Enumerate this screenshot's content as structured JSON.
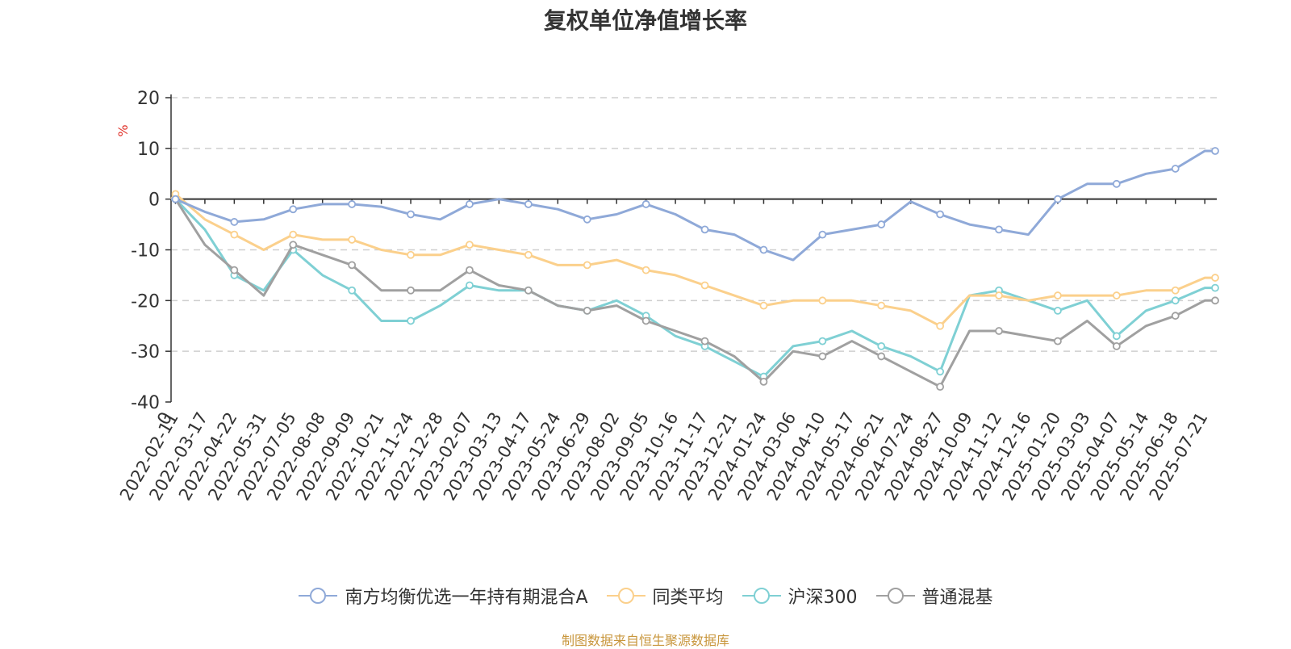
{
  "source_note": "制图数据来自恒生聚源数据库",
  "chart_data": {
    "type": "line",
    "title": "复权单位净值增长率",
    "ylabel": "%",
    "xlabel": "",
    "ylim": [
      -40,
      20
    ],
    "yticks": [
      20,
      10,
      0,
      -10,
      -20,
      -30,
      -40
    ],
    "grid": true,
    "legend_position": "bottom",
    "x": [
      "2022-02-11",
      "2022-03-17",
      "2022-04-22",
      "2022-05-31",
      "2022-07-05",
      "2022-08-08",
      "2022-09-09",
      "2022-10-21",
      "2022-11-24",
      "2022-12-28",
      "2023-02-07",
      "2023-03-13",
      "2023-04-17",
      "2023-05-24",
      "2023-06-29",
      "2023-08-02",
      "2023-09-05",
      "2023-10-16",
      "2023-11-17",
      "2023-12-21",
      "2024-01-24",
      "2024-03-06",
      "2024-04-10",
      "2024-05-17",
      "2024-06-21",
      "2024-07-24",
      "2024-08-27",
      "2024-10-09",
      "2024-11-12",
      "2024-12-16",
      "2025-01-20",
      "2025-03-03",
      "2025-04-07",
      "2025-05-14",
      "2025-06-18",
      "2025-07-21"
    ],
    "x_first_tick_label": "0",
    "series": [
      {
        "name": "南方均衡优选一年持有期混合A",
        "color": "#8fa9d8",
        "values": [
          0,
          -2.5,
          -4.5,
          -4,
          -2,
          -1,
          -1,
          -1.5,
          -3,
          -4,
          -1,
          0,
          -1,
          -2,
          -4,
          -3,
          -1,
          -3,
          -6,
          -7,
          -10,
          -12,
          -7,
          -6,
          -5,
          -0.5,
          -3,
          -5,
          -6,
          -7,
          0,
          3,
          3,
          5,
          6,
          9.5
        ]
      },
      {
        "name": "同类平均",
        "color": "#fbd08c",
        "values": [
          1,
          -4,
          -7,
          -10,
          -7,
          -8,
          -8,
          -10,
          -11,
          -11,
          -9,
          -10,
          -11,
          -13,
          -13,
          -12,
          -14,
          -15,
          -17,
          -19,
          -21,
          -20,
          -20,
          -20,
          -21,
          -22,
          -25,
          -19,
          -19,
          -20,
          -19,
          -19,
          -19,
          -18,
          -18,
          -15.5
        ]
      },
      {
        "name": "沪深300",
        "color": "#7fd0d4",
        "values": [
          0,
          -6,
          -15,
          -18,
          -10,
          -15,
          -18,
          -24,
          -24,
          -21,
          -17,
          -18,
          -18,
          -21,
          -22,
          -20,
          -23,
          -27,
          -29,
          -32,
          -35,
          -29,
          -28,
          -26,
          -29,
          -31,
          -34,
          -19,
          -18,
          -20,
          -22,
          -20,
          -27,
          -22,
          -20,
          -17.5
        ]
      },
      {
        "name": "普通混基",
        "color": "#a0a0a0",
        "values": [
          0,
          -9,
          -14,
          -19,
          -9,
          -11,
          -13,
          -18,
          -18,
          -18,
          -14,
          -17,
          -18,
          -21,
          -22,
          -21,
          -24,
          -26,
          -28,
          -31,
          -36,
          -30,
          -31,
          -28,
          -31,
          -34,
          -37,
          -26,
          -26,
          -27,
          -28,
          -24,
          -29,
          -25,
          -23,
          -20
        ]
      }
    ]
  }
}
